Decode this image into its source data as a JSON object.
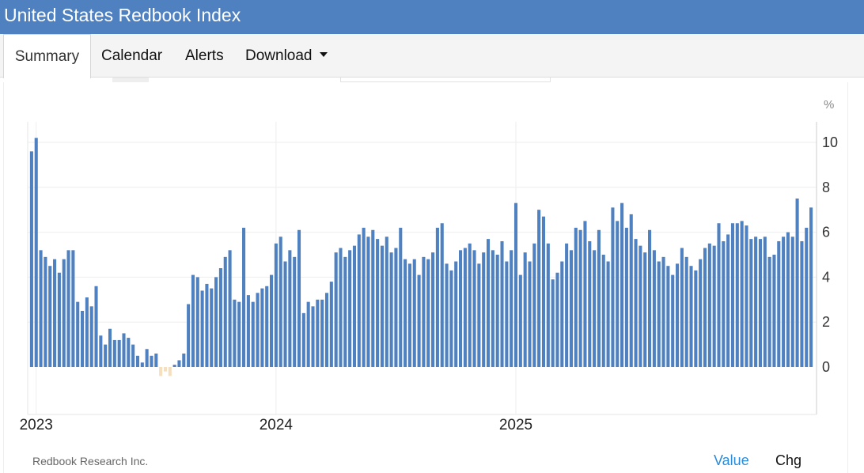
{
  "header": {
    "title": "United States Redbook Index"
  },
  "tabs": [
    {
      "label": "Summary",
      "active": true
    },
    {
      "label": "Calendar",
      "active": false
    },
    {
      "label": "Alerts",
      "active": false
    },
    {
      "label": "Download",
      "active": false,
      "dropdown": true
    }
  ],
  "footer": {
    "source": "Redbook Research Inc.",
    "toggle_value": "Value",
    "toggle_chg": "Chg"
  },
  "colors": {
    "header_bg": "#4f81c1",
    "bar_positive": "#4f81c1",
    "bar_negative": "#f5dfbf",
    "toggle_active": "#2b8bd8",
    "grid": "#eeeeee"
  },
  "chart_data": {
    "type": "bar",
    "unit_label": "%",
    "ylim": [
      -2,
      11
    ],
    "y_ticks": [
      0,
      2,
      4,
      6,
      8,
      10
    ],
    "x_tick_labels": [
      "2023",
      "2024",
      "2025"
    ],
    "x_tick_dates": [
      "2023-01-07",
      "2024-01-06",
      "2025-01-04"
    ],
    "first_week": "2022-12-31",
    "interval": "weekly",
    "grid": true,
    "legend": "none",
    "values": [
      9.6,
      10.2,
      5.2,
      4.9,
      4.5,
      4.8,
      4.2,
      4.8,
      5.2,
      5.2,
      2.9,
      2.5,
      3.1,
      2.7,
      3.6,
      1.4,
      1.0,
      1.7,
      1.2,
      1.2,
      1.5,
      1.3,
      1.0,
      0.5,
      0.2,
      0.8,
      0.5,
      0.6,
      -0.4,
      -0.2,
      -0.4,
      0.1,
      0.3,
      0.6,
      2.8,
      4.1,
      4.0,
      3.4,
      3.7,
      3.5,
      4.0,
      4.4,
      4.9,
      5.2,
      3.0,
      2.9,
      6.2,
      3.2,
      2.9,
      3.3,
      3.5,
      3.6,
      4.1,
      5.5,
      5.8,
      4.7,
      5.2,
      4.9,
      6.1,
      2.4,
      2.9,
      2.7,
      3.0,
      3.0,
      3.3,
      3.8,
      5.1,
      5.3,
      4.9,
      5.2,
      5.4,
      5.9,
      6.2,
      5.8,
      6.1,
      5.7,
      5.4,
      5.8,
      5.1,
      5.3,
      6.2,
      4.8,
      4.6,
      4.8,
      4.1,
      4.9,
      4.8,
      5.1,
      6.2,
      6.4,
      4.6,
      4.3,
      4.7,
      5.2,
      5.3,
      5.5,
      5.2,
      4.6,
      5.1,
      5.7,
      5.2,
      5.0,
      5.6,
      4.7,
      5.2,
      7.3,
      4.1,
      5.1,
      4.7,
      5.5,
      7.0,
      6.7,
      5.5,
      3.9,
      4.2,
      4.7,
      5.5,
      5.2,
      6.2,
      6.1,
      6.5,
      5.6,
      5.2,
      6.1,
      5.0,
      4.7,
      7.1,
      6.5,
      7.3,
      6.2,
      6.8,
      5.7,
      5.4,
      5.1,
      6.1,
      5.2,
      4.7,
      4.9,
      4.5,
      4.1,
      4.6,
      5.3,
      4.9,
      4.5,
      4.3,
      4.8,
      5.3,
      5.5,
      5.4,
      6.4,
      5.6,
      5.9,
      6.4,
      6.4,
      6.5,
      6.3,
      5.7,
      5.8,
      5.7,
      5.8,
      4.9,
      5.0,
      5.6,
      5.8,
      6.0,
      5.8,
      7.5,
      5.6,
      6.2,
      7.1
    ]
  }
}
